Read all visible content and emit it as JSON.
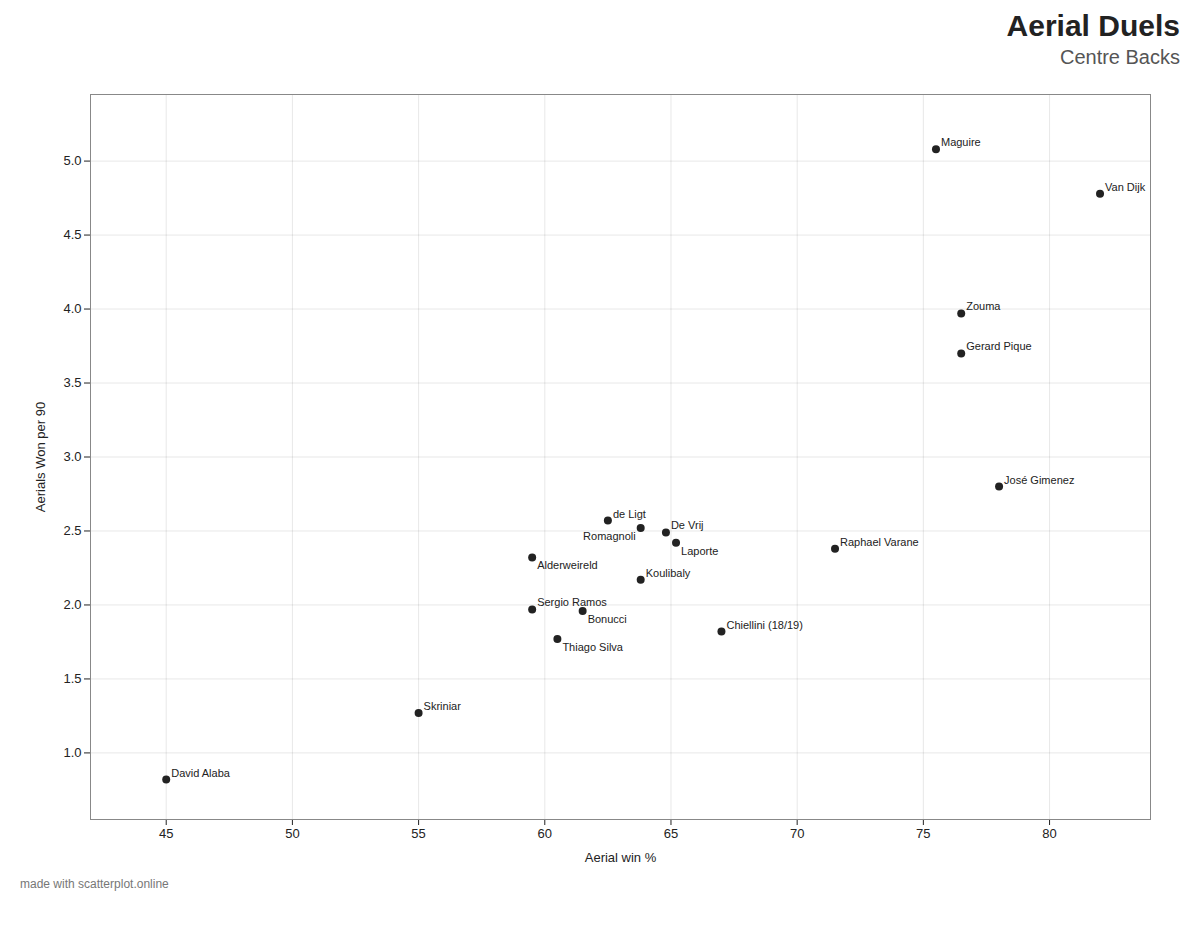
{
  "chart_data": {
    "type": "scatter",
    "title": "Aerial Duels",
    "subtitle": "Centre Backs",
    "xlabel": "Aerial win %",
    "ylabel": "Aerials Won per 90",
    "caption": "made with scatterplot.online",
    "labels": [
      "Maguire",
      "Van Dijk",
      "Zouma",
      "Gerard Pique",
      "José Gimenez",
      "de Ligt",
      "Romagnoli",
      "De Vrij",
      "Alderweireld",
      "Laporte",
      "Raphael Varane",
      "Koulibaly",
      "Sergio Ramos",
      "Bonucci",
      "Thiago Silva",
      "Chiellini (18/19)",
      "Skriniar",
      "David Alaba"
    ],
    "x": [
      75.5,
      82.0,
      76.5,
      76.5,
      78.0,
      62.5,
      63.8,
      64.8,
      59.5,
      65.2,
      71.5,
      63.8,
      59.5,
      61.5,
      60.5,
      67.0,
      55.0,
      45.0
    ],
    "values": [
      5.08,
      4.78,
      3.97,
      3.7,
      2.8,
      2.57,
      2.52,
      2.49,
      2.32,
      2.42,
      2.38,
      2.17,
      1.97,
      1.96,
      1.77,
      1.82,
      1.27,
      0.82
    ],
    "xlim": [
      42,
      84
    ],
    "ylim": [
      0.55,
      5.45
    ],
    "xticks": [
      45,
      50,
      55,
      60,
      65,
      70,
      75,
      80
    ],
    "yticks": [
      {
        "value": 1.0,
        "label": "1.0"
      },
      1.5,
      {
        "value": 2.0,
        "label": "2.0"
      },
      2.5,
      {
        "value": 3.0,
        "label": "3.0"
      },
      3.5,
      {
        "value": 4.0,
        "label": "4.0"
      },
      4.5,
      {
        "value": 5.0,
        "label": "5.0"
      }
    ],
    "grid": true
  }
}
